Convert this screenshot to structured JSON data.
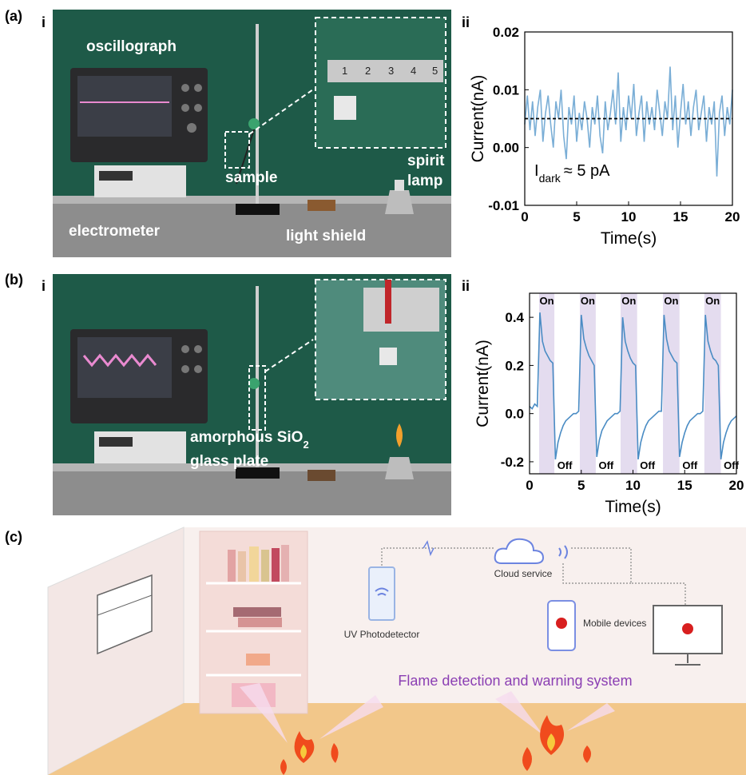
{
  "panel_labels": {
    "a": "(a)",
    "b": "(b)",
    "c": "(c)",
    "sub_i": "i",
    "sub_ii": "ii"
  },
  "photo_a": {
    "oscillograph": "oscillograph",
    "sample": "sample",
    "spirit": "spirit",
    "lamp": "lamp",
    "electrometer": "electrometer",
    "light_shield": "light shield",
    "ruler": [
      "1",
      "2",
      "3",
      "4",
      "5"
    ]
  },
  "photo_b": {
    "material": "amorphous SiO",
    "material_sub": "2",
    "glass_plate": "glass plate"
  },
  "illustration": {
    "cloud": "Cloud service",
    "detector": "UV Photodetector",
    "mobile": "Mobile devices",
    "system": "Flame detection and warning system"
  },
  "chart_data": [
    {
      "type": "line",
      "xlabel": "Time(s)",
      "ylabel": "Current(nA)",
      "color": "#7aaed6",
      "xlim": [
        0,
        20
      ],
      "xticks": [
        0,
        5,
        10,
        15,
        20
      ],
      "ylim": [
        -0.01,
        0.02
      ],
      "yticks": [
        0.02,
        0.01,
        {
          "value": 0,
          "label": "0.00"
        },
        -0.01
      ],
      "reference_line": 0.005,
      "annotation": {
        "main": "I",
        "sub": "dark",
        "rest": "≈ 5 pA"
      },
      "x": [
        0,
        0.25,
        0.5,
        0.75,
        1,
        1.25,
        1.5,
        1.75,
        2,
        2.25,
        2.5,
        2.75,
        3,
        3.25,
        3.5,
        3.75,
        4,
        4.25,
        4.5,
        4.75,
        5,
        5.25,
        5.5,
        5.75,
        6,
        6.25,
        6.5,
        6.75,
        7,
        7.25,
        7.5,
        7.75,
        8,
        8.25,
        8.5,
        8.75,
        9,
        9.25,
        9.5,
        9.75,
        10,
        10.25,
        10.5,
        10.75,
        11,
        11.25,
        11.5,
        11.75,
        12,
        12.25,
        12.5,
        12.75,
        13,
        13.25,
        13.5,
        13.75,
        14,
        14.25,
        14.5,
        14.75,
        15,
        15.25,
        15.5,
        15.75,
        16,
        16.25,
        16.5,
        16.75,
        17,
        17.25,
        17.5,
        17.75,
        18,
        18.25,
        18.5,
        18.75,
        19,
        19.25,
        19.5,
        19.75,
        20
      ],
      "values": [
        0.004,
        0.009,
        0.003,
        0.008,
        0.002,
        0.007,
        0.01,
        0.001,
        0.006,
        0.009,
        0.004,
        0.0,
        0.008,
        0.005,
        0.01,
        0.002,
        -0.002,
        0.007,
        0.004,
        0.009,
        0.001,
        0.006,
        0.003,
        0.008,
        0.005,
        0.0,
        0.007,
        0.004,
        0.009,
        0.002,
        -0.001,
        0.008,
        0.003,
        0.006,
        0.01,
        0.004,
        0.013,
        0.001,
        0.007,
        0.003,
        0.009,
        0.005,
        0.011,
        0.002,
        0.006,
        0.009,
        0.001,
        0.008,
        0.004,
        0.007,
        0.003,
        0.01,
        0.006,
        0.002,
        0.008,
        0.005,
        0.014,
        0.003,
        0.009,
        0.0,
        0.006,
        0.011,
        0.004,
        0.008,
        0.002,
        0.007,
        0.01,
        0.003,
        0.006,
        0.009,
        0.001,
        0.007,
        0.004,
        0.008,
        -0.005,
        0.006,
        0.009,
        0.002,
        0.007,
        0.004,
        0.01
      ]
    },
    {
      "type": "line",
      "xlabel": "Time(s)",
      "ylabel": "Current(nA)",
      "color": "#4a8cc4",
      "xlim": [
        0,
        20
      ],
      "xticks": [
        0,
        5,
        10,
        15,
        20
      ],
      "ylim": [
        -0.25,
        0.5
      ],
      "yticks": [
        0.4,
        0.2,
        {
          "value": 0,
          "label": "0.0"
        },
        -0.2
      ],
      "shaded": [
        [
          0.93,
          2.4
        ],
        [
          4.86,
          6.4
        ],
        [
          8.8,
          10.4
        ],
        [
          12.9,
          14.5
        ],
        [
          16.9,
          18.5
        ]
      ],
      "shade_color": "#e4dcef",
      "on_label": "On",
      "off_label": "Off",
      "x": [
        0,
        0.25,
        0.5,
        0.75,
        1,
        1.25,
        1.5,
        1.75,
        2,
        2.25,
        2.5,
        2.75,
        3,
        3.25,
        3.5,
        3.75,
        4,
        4.25,
        4.5,
        4.75,
        5,
        5.25,
        5.5,
        5.75,
        6,
        6.25,
        6.5,
        6.75,
        7,
        7.25,
        7.5,
        7.75,
        8,
        8.25,
        8.5,
        8.75,
        9,
        9.25,
        9.5,
        9.75,
        10,
        10.25,
        10.5,
        10.75,
        11,
        11.25,
        11.5,
        11.75,
        12,
        12.25,
        12.5,
        12.75,
        13,
        13.25,
        13.5,
        13.75,
        14,
        14.25,
        14.5,
        14.75,
        15,
        15.25,
        15.5,
        15.75,
        16,
        16.25,
        16.5,
        16.75,
        17,
        17.25,
        17.5,
        17.75,
        18,
        18.25,
        18.5,
        18.75,
        19,
        19.25,
        19.5,
        19.75,
        20
      ],
      "values": [
        0.03,
        0.02,
        0.04,
        0.03,
        0.42,
        0.3,
        0.26,
        0.24,
        0.22,
        0.21,
        -0.19,
        -0.12,
        -0.08,
        -0.05,
        -0.03,
        -0.02,
        -0.01,
        0.0,
        0.0,
        0.01,
        0.41,
        0.31,
        0.27,
        0.24,
        0.22,
        0.2,
        -0.18,
        -0.11,
        -0.07,
        -0.05,
        -0.03,
        -0.02,
        -0.01,
        0.0,
        0.0,
        0.01,
        0.4,
        0.3,
        0.26,
        0.23,
        0.21,
        0.2,
        -0.19,
        -0.12,
        -0.08,
        -0.05,
        -0.03,
        -0.02,
        -0.01,
        0.0,
        0.01,
        0.01,
        0.41,
        0.31,
        0.26,
        0.24,
        0.22,
        0.21,
        -0.18,
        -0.12,
        -0.08,
        -0.05,
        -0.03,
        -0.02,
        -0.01,
        0.0,
        0.0,
        0.01,
        0.41,
        0.3,
        0.26,
        0.23,
        0.22,
        0.2,
        -0.19,
        -0.12,
        -0.08,
        -0.05,
        -0.03,
        -0.02,
        -0.01
      ]
    }
  ]
}
